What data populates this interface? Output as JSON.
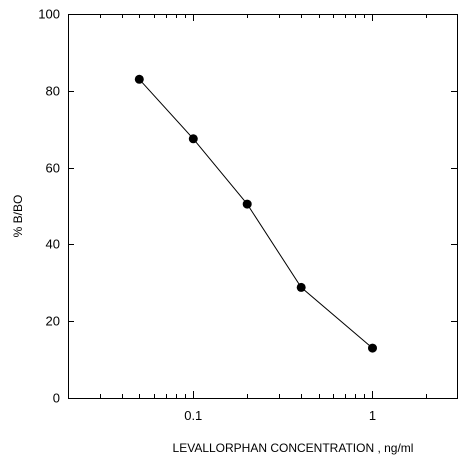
{
  "chart_data": {
    "type": "line",
    "title": "",
    "xlabel": "LEVALLORPHAN CONCENTRATION , ng/ml",
    "ylabel": "% B/BO",
    "x_scale": "log",
    "xlim": [
      0.02,
      3
    ],
    "ylim": [
      0,
      100
    ],
    "x_ticks": [
      {
        "value": 0.1,
        "label": "0.1"
      },
      {
        "value": 1,
        "label": "1"
      }
    ],
    "y_ticks": [
      {
        "value": 0,
        "label": "0"
      },
      {
        "value": 20,
        "label": "20"
      },
      {
        "value": 40,
        "label": "40"
      },
      {
        "value": 60,
        "label": "60"
      },
      {
        "value": 80,
        "label": "80"
      },
      {
        "value": 100,
        "label": "100"
      }
    ],
    "grid": false,
    "legend": "none",
    "series": [
      {
        "x": [
          0.05,
          0.1,
          0.2,
          0.4,
          1
        ],
        "y": [
          83,
          67.5,
          50.5,
          28.8,
          13
        ],
        "color": "#000000",
        "marker": "filled-circle"
      }
    ]
  }
}
